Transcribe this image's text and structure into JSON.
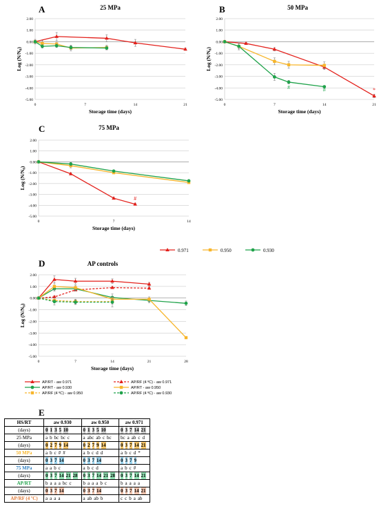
{
  "colors": {
    "red": "#e3201b",
    "yellow": "#f7b52a",
    "green": "#1fa24a",
    "grid": "#bfbfbf"
  },
  "chart_data": [
    {
      "panel": "A",
      "type": "line",
      "title": "25 MPa",
      "xlabel": "Storage time (days)",
      "ylabel": "Log (N/N0)",
      "xlim": [
        0,
        21
      ],
      "ylim": [
        -5,
        2
      ],
      "xticks": [
        0,
        7,
        14,
        21
      ],
      "yticks": [
        "2.00",
        "1.00",
        "0.00",
        "-1.00",
        "-2.00",
        "-3.00",
        "-4.00",
        "-5.00"
      ],
      "series": [
        {
          "name": "0.971",
          "color": "red",
          "x": [
            0,
            3,
            10,
            14,
            21
          ],
          "y": [
            0,
            0.45,
            0.3,
            -0.1,
            -0.65
          ],
          "err": [
            0.2,
            0.35,
            0.3,
            0.3,
            0.1
          ]
        },
        {
          "name": "0.950",
          "color": "yellow",
          "x": [
            0,
            1,
            3,
            5,
            10
          ],
          "y": [
            0,
            -0.15,
            -0.2,
            -0.55,
            -0.5
          ],
          "err": [
            0.1,
            0.25,
            0.2,
            0.25,
            0.2
          ]
        },
        {
          "name": "0.930",
          "color": "green",
          "x": [
            0,
            1,
            3,
            5,
            10
          ],
          "y": [
            0,
            -0.4,
            -0.35,
            -0.5,
            -0.55
          ],
          "err": [
            0.1,
            0.15,
            0.15,
            0.15,
            0.15
          ]
        }
      ],
      "annotations": []
    },
    {
      "panel": "B",
      "type": "line",
      "title": "50 MPa",
      "xlabel": "Storage time (days)",
      "ylabel": "Log (N/N0)",
      "xlim": [
        0,
        21
      ],
      "ylim": [
        -5,
        2
      ],
      "xticks": [
        0,
        7,
        14,
        21
      ],
      "yticks": [
        "2.00",
        "1.00",
        "0.00",
        "-1.00",
        "-2.00",
        "-3.00",
        "-4.00",
        "-5.00"
      ],
      "series": [
        {
          "name": "0.971",
          "color": "red",
          "x": [
            0,
            3,
            7,
            14,
            21
          ],
          "y": [
            0,
            -0.15,
            -0.65,
            -2.2,
            -4.7
          ],
          "err": [
            0.05,
            0.1,
            0.15,
            0.2,
            0.15
          ]
        },
        {
          "name": "0.950",
          "color": "yellow",
          "x": [
            0,
            2,
            7,
            9,
            14
          ],
          "y": [
            0,
            -0.4,
            -1.7,
            -2.0,
            -2.05
          ],
          "err": [
            0.1,
            0.3,
            0.3,
            0.3,
            0.3
          ]
        },
        {
          "name": "0.930",
          "color": "green",
          "x": [
            0,
            2,
            7,
            9,
            14
          ],
          "y": [
            0,
            -0.4,
            -3.05,
            -3.5,
            -3.9
          ],
          "err": [
            0.1,
            0.2,
            0.3,
            0.15,
            0.1
          ]
        }
      ],
      "annotations": [
        {
          "text": "#",
          "x": 9,
          "y": -4.1,
          "color": "green"
        },
        {
          "text": "#",
          "x": 14,
          "y": -4.3,
          "color": "green"
        },
        {
          "text": "*",
          "x": 21,
          "y": -4.35,
          "color": "red"
        }
      ]
    },
    {
      "panel": "C",
      "type": "line",
      "title": "75 MPa",
      "xlabel": "Storage time (days)",
      "ylabel": "Log (N/N0)",
      "xlim": [
        0,
        14
      ],
      "ylim": [
        -5,
        2
      ],
      "xticks": [
        0,
        7,
        14
      ],
      "yticks": [
        "2.00",
        "1.00",
        "0.00",
        "-1.00",
        "-2.00",
        "-3.00",
        "-4.00",
        "-5.00"
      ],
      "series": [
        {
          "name": "0.971",
          "color": "red",
          "x": [
            0,
            3,
            7,
            9
          ],
          "y": [
            0,
            -1.1,
            -3.35,
            -3.9
          ],
          "err": [
            0.05,
            0.1,
            0.1,
            0.1
          ]
        },
        {
          "name": "0.950",
          "color": "yellow",
          "x": [
            0,
            3,
            7,
            14
          ],
          "y": [
            0,
            -0.35,
            -1.0,
            -1.9
          ],
          "err": [
            0.1,
            0.2,
            0.1,
            0.1
          ]
        },
        {
          "name": "0.930",
          "color": "green",
          "x": [
            0,
            3,
            7,
            14
          ],
          "y": [
            0,
            -0.2,
            -0.85,
            -1.75
          ],
          "err": [
            0.1,
            0.15,
            0.1,
            0.1
          ]
        }
      ],
      "annotations": [
        {
          "text": "#",
          "x": 9,
          "y": -3.55,
          "color": "red"
        }
      ]
    },
    {
      "panel": "D",
      "type": "line",
      "title": "AP controls",
      "xlabel": "Storage time (days)",
      "ylabel": "Log (N/N0)",
      "xlim": [
        0,
        28
      ],
      "ylim": [
        -5,
        2
      ],
      "xticks": [
        0,
        7,
        14,
        21,
        28
      ],
      "yticks": [
        "2.00",
        "1.00",
        "0.00",
        "-1.00",
        "-2.00",
        "-3.00",
        "-4.00",
        "-5.00"
      ],
      "series": [
        {
          "name": "AP/RT - aw 0.971",
          "color": "red",
          "dash": false,
          "marker": "tri",
          "x": [
            0,
            3,
            7,
            14,
            21
          ],
          "y": [
            0,
            1.6,
            1.45,
            1.45,
            1.2
          ],
          "err": [
            0.1,
            0.3,
            0.25,
            0.2,
            0.15
          ]
        },
        {
          "name": "AP/RF (4 ºC) - aw 0.971",
          "color": "red",
          "dash": true,
          "marker": "tri",
          "x": [
            0,
            3,
            7,
            14,
            21
          ],
          "y": [
            0,
            0.1,
            0.7,
            0.9,
            0.85
          ],
          "err": [
            0.05,
            0.1,
            0.1,
            0.1,
            0.1
          ]
        },
        {
          "name": "AP/RT - aw 0.930",
          "color": "green",
          "dash": false,
          "marker": "circ",
          "x": [
            0,
            3,
            7,
            14,
            21,
            28
          ],
          "y": [
            0,
            0.8,
            0.8,
            0.05,
            -0.2,
            -0.45
          ],
          "err": [
            0.1,
            0.2,
            0.2,
            0.3,
            0.2,
            0.2
          ]
        },
        {
          "name": "AP/RT - aw 0.950",
          "color": "yellow",
          "dash": false,
          "marker": "sq",
          "x": [
            0,
            3,
            7,
            14,
            21,
            28
          ],
          "y": [
            0,
            1.0,
            0.9,
            -0.1,
            -0.1,
            -3.4
          ],
          "err": [
            0.1,
            0.3,
            0.2,
            0.2,
            0.2,
            0.1
          ]
        },
        {
          "name": "AP/RF (4 ºC) - aw 0.950",
          "color": "yellow",
          "dash": true,
          "marker": "sq",
          "x": [
            0,
            3,
            7,
            14
          ],
          "y": [
            0,
            -0.2,
            -0.3,
            -0.3
          ],
          "err": [
            0.1,
            0.2,
            0.2,
            0.2
          ]
        },
        {
          "name": "AP/RF (4 ºC) - aw 0.930",
          "color": "green",
          "dash": true,
          "marker": "circ",
          "x": [
            0,
            3,
            7,
            14
          ],
          "y": [
            0,
            -0.3,
            -0.35,
            -0.35
          ],
          "err": [
            0.1,
            0.3,
            0.2,
            0.4
          ]
        }
      ],
      "annotations": []
    }
  ],
  "mid_legend": [
    {
      "label": "0.971",
      "color": "red",
      "marker": "tri"
    },
    {
      "label": "0.950",
      "color": "yellow",
      "marker": "sq"
    },
    {
      "label": "0.930",
      "color": "green",
      "marker": "circ"
    }
  ],
  "table": {
    "panel": "E",
    "corner": "HS/RT",
    "headers": [
      "aw 0.930",
      "aw 0.950",
      "aw 0.971"
    ],
    "rows": [
      {
        "label": "(days)",
        "days": [
          [
            "0",
            "1",
            "3",
            "5",
            "10"
          ],
          [
            "0",
            "1",
            "3",
            "5",
            "10"
          ],
          [
            "0",
            "3",
            "7",
            "14",
            "21"
          ]
        ],
        "bg": "#c8c8c8"
      },
      {
        "label": "25 MPa",
        "letters": [
          [
            "a",
            "b",
            "bc",
            "bc",
            "c"
          ],
          [
            "a",
            "abc",
            "ab",
            "c",
            "bc"
          ],
          [
            "bc",
            "a",
            "ab",
            "c",
            "d"
          ]
        ]
      },
      {
        "label": "(days)",
        "days": [
          [
            "0",
            "2",
            "7",
            "9",
            "14"
          ],
          [
            "0",
            "2",
            "7",
            "9",
            "14"
          ],
          [
            "0",
            "3",
            "7",
            "14",
            "21"
          ]
        ],
        "bg": "#f6c66b"
      },
      {
        "label": "50 MPa",
        "letters": [
          [
            "a",
            "b",
            "c",
            "#",
            "#"
          ],
          [
            "a",
            "b",
            "c",
            "d",
            "d"
          ],
          [
            "a",
            "b",
            "c",
            "d",
            "*"
          ]
        ],
        "color": "#f7b52a"
      },
      {
        "label": "(days)",
        "days": [
          [
            "0",
            "3",
            "7",
            "14"
          ],
          [
            "0",
            "3",
            "7",
            "14"
          ],
          [
            "0",
            "3",
            "7",
            "9"
          ]
        ],
        "bg": "#9fd8f2"
      },
      {
        "label": "75 MPa",
        "letters": [
          [
            "a",
            "a",
            "b",
            "c"
          ],
          [
            "a",
            "b",
            "c",
            "d"
          ],
          [
            "a",
            "b",
            "c",
            "#"
          ]
        ],
        "color": "#2f7fc1"
      },
      {
        "label": "(days)",
        "days": [
          [
            "0",
            "3",
            "7",
            "14",
            "21",
            "28"
          ],
          [
            "0",
            "3",
            "7",
            "14",
            "21",
            "28"
          ],
          [
            "0",
            "3",
            "7",
            "14",
            "21"
          ]
        ],
        "bg": "#92e2b4"
      },
      {
        "label": "AP/RT",
        "letters": [
          [
            "b",
            "a",
            "a",
            "a",
            "bc",
            "c"
          ],
          [
            "b",
            "a",
            "a",
            "a",
            "b",
            "c"
          ],
          [
            "b",
            "a",
            "a",
            "a",
            "a"
          ]
        ],
        "color": "#1fa24a"
      },
      {
        "label": "(days)",
        "days": [
          [
            "0",
            "3",
            "7",
            "14"
          ],
          [
            "0",
            "3",
            "7",
            "14"
          ],
          [
            "0",
            "3",
            "7",
            "14",
            "21"
          ]
        ],
        "bg": "#f2c4ae"
      },
      {
        "label": "AP/RF (4 ºC)",
        "letters": [
          [
            "a",
            "a",
            "a",
            "a"
          ],
          [
            "a",
            "ab",
            "ab",
            "b"
          ],
          [
            "c",
            "c",
            "b",
            "a",
            "ab"
          ]
        ],
        "color": "#e07b39"
      }
    ]
  }
}
